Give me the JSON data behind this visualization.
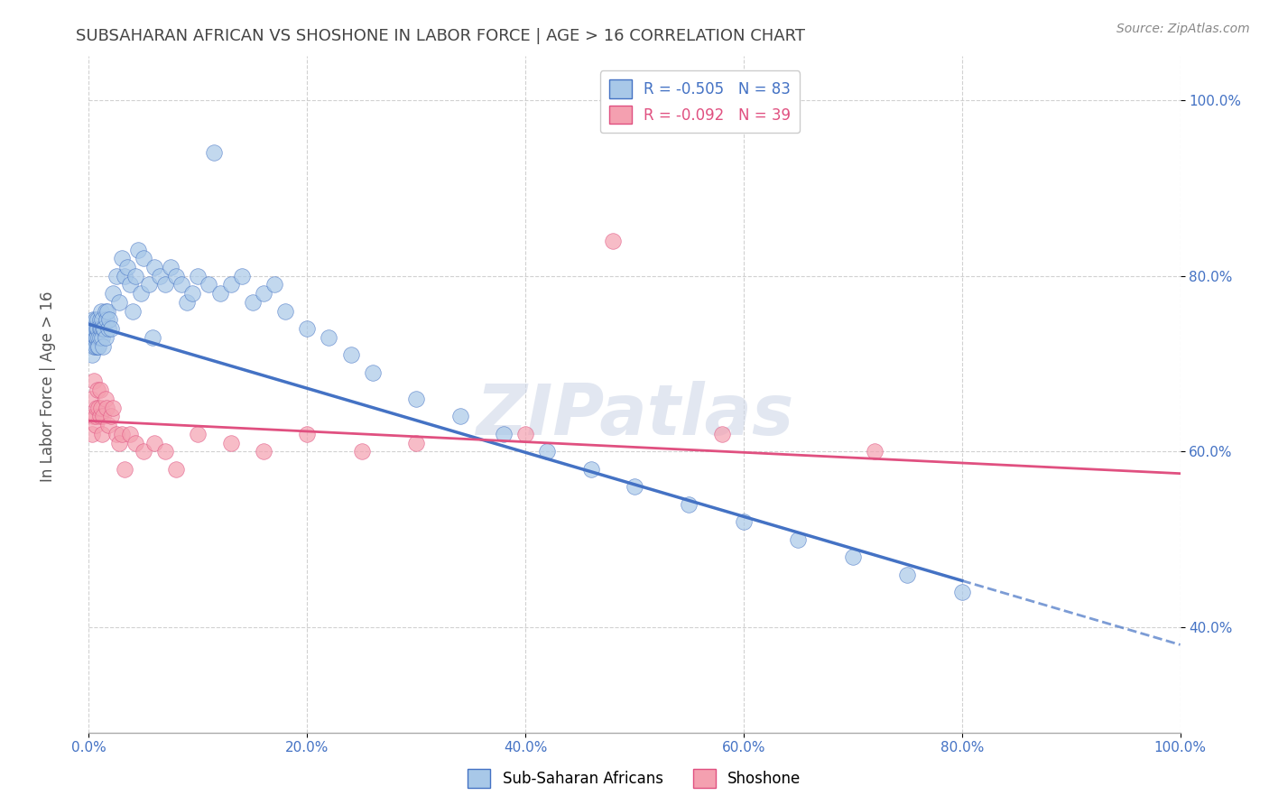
{
  "title": "SUBSAHARAN AFRICAN VS SHOSHONE IN LABOR FORCE | AGE > 16 CORRELATION CHART",
  "source": "Source: ZipAtlas.com",
  "ylabel": "In Labor Force | Age > 16",
  "xmin": 0.0,
  "xmax": 1.0,
  "ymin": 0.28,
  "ymax": 1.05,
  "blue_R": "-0.505",
  "blue_N": "83",
  "pink_R": "-0.092",
  "pink_N": "39",
  "blue_color": "#a8c8e8",
  "pink_color": "#f4a0b0",
  "blue_line_color": "#4472c4",
  "pink_line_color": "#e05080",
  "watermark": "ZIPatlas",
  "blue_points_x": [
    0.002,
    0.003,
    0.003,
    0.004,
    0.004,
    0.005,
    0.005,
    0.005,
    0.006,
    0.006,
    0.006,
    0.007,
    0.007,
    0.008,
    0.008,
    0.008,
    0.009,
    0.009,
    0.01,
    0.01,
    0.01,
    0.011,
    0.011,
    0.012,
    0.012,
    0.013,
    0.013,
    0.014,
    0.015,
    0.015,
    0.016,
    0.017,
    0.018,
    0.019,
    0.02,
    0.022,
    0.025,
    0.028,
    0.03,
    0.033,
    0.035,
    0.038,
    0.04,
    0.043,
    0.045,
    0.048,
    0.05,
    0.055,
    0.058,
    0.06,
    0.065,
    0.07,
    0.075,
    0.08,
    0.085,
    0.09,
    0.095,
    0.1,
    0.11,
    0.115,
    0.12,
    0.13,
    0.14,
    0.15,
    0.16,
    0.17,
    0.18,
    0.2,
    0.22,
    0.24,
    0.26,
    0.3,
    0.34,
    0.38,
    0.42,
    0.46,
    0.5,
    0.55,
    0.6,
    0.65,
    0.7,
    0.75,
    0.8
  ],
  "blue_points_y": [
    0.73,
    0.74,
    0.71,
    0.73,
    0.75,
    0.73,
    0.74,
    0.72,
    0.75,
    0.73,
    0.72,
    0.74,
    0.73,
    0.75,
    0.72,
    0.74,
    0.73,
    0.72,
    0.75,
    0.74,
    0.73,
    0.76,
    0.74,
    0.75,
    0.73,
    0.74,
    0.72,
    0.74,
    0.76,
    0.73,
    0.75,
    0.76,
    0.74,
    0.75,
    0.74,
    0.78,
    0.8,
    0.77,
    0.82,
    0.8,
    0.81,
    0.79,
    0.76,
    0.8,
    0.83,
    0.78,
    0.82,
    0.79,
    0.73,
    0.81,
    0.8,
    0.79,
    0.81,
    0.8,
    0.79,
    0.77,
    0.78,
    0.8,
    0.79,
    0.94,
    0.78,
    0.79,
    0.8,
    0.77,
    0.78,
    0.79,
    0.76,
    0.74,
    0.73,
    0.71,
    0.69,
    0.66,
    0.64,
    0.62,
    0.6,
    0.58,
    0.56,
    0.54,
    0.52,
    0.5,
    0.48,
    0.46,
    0.44
  ],
  "pink_points_x": [
    0.002,
    0.003,
    0.004,
    0.005,
    0.006,
    0.006,
    0.007,
    0.008,
    0.009,
    0.01,
    0.01,
    0.011,
    0.012,
    0.013,
    0.015,
    0.016,
    0.018,
    0.02,
    0.022,
    0.025,
    0.028,
    0.03,
    0.033,
    0.038,
    0.043,
    0.05,
    0.06,
    0.07,
    0.08,
    0.1,
    0.13,
    0.16,
    0.2,
    0.25,
    0.3,
    0.4,
    0.48,
    0.58,
    0.72
  ],
  "pink_points_y": [
    0.66,
    0.62,
    0.64,
    0.68,
    0.63,
    0.64,
    0.65,
    0.67,
    0.65,
    0.64,
    0.67,
    0.65,
    0.62,
    0.64,
    0.66,
    0.65,
    0.63,
    0.64,
    0.65,
    0.62,
    0.61,
    0.62,
    0.58,
    0.62,
    0.61,
    0.6,
    0.61,
    0.6,
    0.58,
    0.62,
    0.61,
    0.6,
    0.62,
    0.6,
    0.61,
    0.62,
    0.84,
    0.62,
    0.6
  ],
  "xtick_labels": [
    "0.0%",
    "20.0%",
    "40.0%",
    "60.0%",
    "80.0%",
    "100.0%"
  ],
  "xtick_values": [
    0.0,
    0.2,
    0.4,
    0.6,
    0.8,
    1.0
  ],
  "ytick_labels": [
    "40.0%",
    "60.0%",
    "80.0%",
    "100.0%"
  ],
  "ytick_values": [
    0.4,
    0.6,
    0.8,
    1.0
  ],
  "legend_label_blue": "Sub-Saharan Africans",
  "legend_label_pink": "Shoshone",
  "blue_line_x0": 0.0,
  "blue_line_y0": 0.745,
  "blue_line_x1": 1.0,
  "blue_line_y1": 0.38,
  "pink_line_x0": 0.0,
  "pink_line_y0": 0.635,
  "pink_line_x1": 1.0,
  "pink_line_y1": 0.575
}
